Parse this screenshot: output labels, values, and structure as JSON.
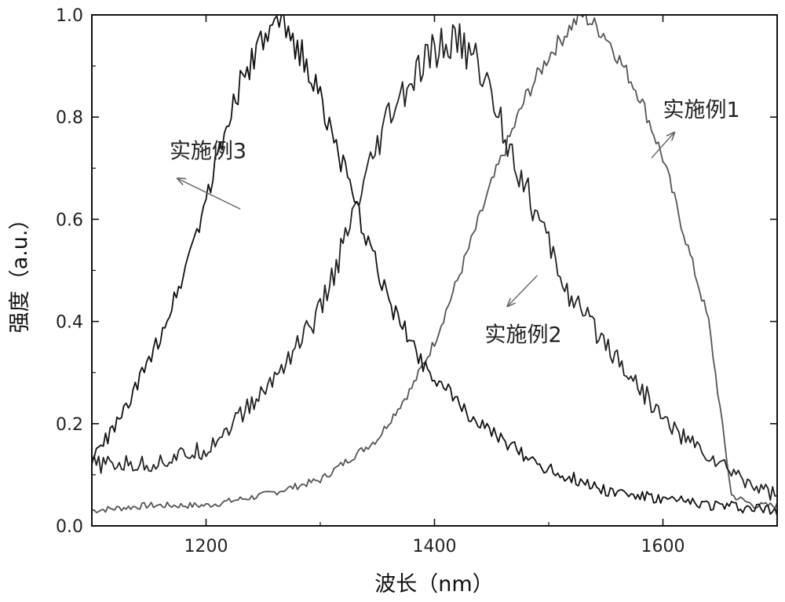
{
  "chart_data": {
    "type": "line",
    "title": "",
    "xlabel": "波长（nm）",
    "ylabel": "强度（a.u.）",
    "xlim": [
      1100,
      1700
    ],
    "ylim": [
      0.0,
      1.0
    ],
    "x_ticks": [
      1200,
      1400,
      1600
    ],
    "x_tick_labels": [
      "1200",
      "1400",
      "1600"
    ],
    "y_ticks": [
      0.0,
      0.2,
      0.4,
      0.6,
      0.8,
      1.0
    ],
    "y_tick_labels": [
      "0.0",
      "0.2",
      "0.4",
      "0.6",
      "0.8",
      "1.0"
    ],
    "grid": false,
    "legend": "none",
    "series": [
      {
        "name": "实施例1",
        "color": "#555555",
        "x": [
          1100,
          1150,
          1200,
          1250,
          1300,
          1350,
          1380,
          1400,
          1420,
          1450,
          1480,
          1500,
          1520,
          1530,
          1550,
          1580,
          1600,
          1620,
          1640,
          1660,
          1680,
          1700
        ],
        "y": [
          0.03,
          0.04,
          0.04,
          0.06,
          0.09,
          0.17,
          0.27,
          0.36,
          0.48,
          0.67,
          0.84,
          0.92,
          0.98,
          1.0,
          0.96,
          0.84,
          0.72,
          0.56,
          0.4,
          0.06,
          0.04,
          0.04
        ]
      },
      {
        "name": "实施例2",
        "color": "#222222",
        "x": [
          1100,
          1150,
          1200,
          1250,
          1300,
          1330,
          1360,
          1400,
          1420,
          1440,
          1460,
          1480,
          1500,
          1520,
          1550,
          1600,
          1620,
          1650,
          1680,
          1700
        ],
        "y": [
          0.12,
          0.12,
          0.15,
          0.26,
          0.42,
          0.61,
          0.8,
          0.93,
          0.95,
          0.9,
          0.78,
          0.66,
          0.55,
          0.44,
          0.36,
          0.21,
          0.17,
          0.12,
          0.08,
          0.06
        ]
      },
      {
        "name": "实施例3",
        "color": "#111111",
        "x": [
          1100,
          1125,
          1150,
          1175,
          1200,
          1225,
          1250,
          1265,
          1280,
          1300,
          1330,
          1360,
          1390,
          1420,
          1450,
          1500,
          1550,
          1600,
          1650,
          1700
        ],
        "y": [
          0.13,
          0.21,
          0.32,
          0.46,
          0.64,
          0.84,
          0.95,
          0.98,
          0.94,
          0.84,
          0.63,
          0.44,
          0.32,
          0.24,
          0.18,
          0.11,
          0.07,
          0.05,
          0.04,
          0.03
        ]
      }
    ],
    "annotations": [
      {
        "text": "实施例3",
        "series": "实施例3",
        "x": 1168,
        "y": 0.72,
        "point_x": 1230,
        "point_y": 0.62,
        "arrow_x": 1175,
        "arrow_y": 0.68
      },
      {
        "text": "实施例1",
        "series": "实施例1",
        "x": 1600,
        "y": 0.8,
        "point_x": 1590,
        "point_y": 0.72,
        "arrow_x": 1610,
        "arrow_y": 0.77
      },
      {
        "text": "实施例2",
        "series": "实施例2",
        "x": 1444,
        "y": 0.36,
        "point_x": 1490,
        "point_y": 0.49,
        "arrow_x": 1464,
        "arrow_y": 0.43
      }
    ]
  }
}
